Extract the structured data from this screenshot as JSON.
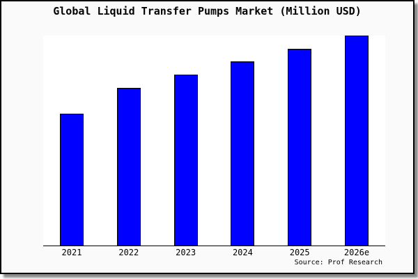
{
  "frame": {
    "title": "Global Liquid Transfer Pumps Market (Million USD)",
    "source_note": "Source: Prof Research"
  },
  "colors": {
    "bar_fill": "#0000ff",
    "bar_border": "#000000",
    "frame_background": "#fafafa",
    "plot_background": "#ffffff",
    "axis_line": "#000000",
    "text": "#000000"
  },
  "chart_data": {
    "type": "bar",
    "title": "Global Liquid Transfer Pumps Market (Million USD)",
    "categories": [
      "2021",
      "2022",
      "2023",
      "2024",
      "2025",
      "2026e"
    ],
    "values": [
      189,
      226,
      245,
      264,
      282,
      301
    ],
    "values_note": "chart displays no y-axis, gridlines, or numeric data labels; values are relative bar heights in pixels (plot height 301px)",
    "xlabel": "",
    "ylabel": "",
    "legend": false,
    "grid": false,
    "source": "Source: Prof Research"
  }
}
